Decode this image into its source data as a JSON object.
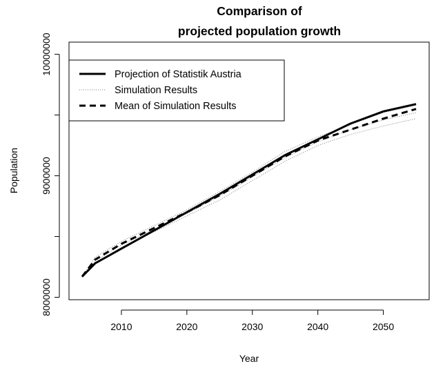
{
  "chart_data": {
    "type": "line",
    "title_lines": [
      "Comparison of",
      "projected population growth"
    ],
    "xlabel": "Year",
    "ylabel": "Population",
    "xlim": [
      2002,
      2057
    ],
    "ylim": [
      7980000,
      10100000
    ],
    "x_ticks": [
      2010,
      2020,
      2030,
      2040,
      2050
    ],
    "y_ticks": [
      8000000,
      8500000,
      9000000,
      9500000,
      10000000
    ],
    "y_tick_labels": [
      "8000000",
      "",
      "9000000",
      "",
      "10000000"
    ],
    "grid": false,
    "legend_position": "top-left",
    "series": [
      {
        "name": "Projection of Statistik Austria",
        "style": "solid",
        "x": [
          2004,
          2006,
          2008,
          2010,
          2015,
          2020,
          2025,
          2030,
          2035,
          2040,
          2045,
          2050,
          2055
        ],
        "y": [
          8170000,
          8280000,
          8340000,
          8400000,
          8550000,
          8700000,
          8850000,
          9010000,
          9170000,
          9300000,
          9430000,
          9530000,
          9590000
        ]
      },
      {
        "name": "Simulation Results",
        "style": "dotted",
        "x": [
          2004,
          2006,
          2010,
          2015,
          2020,
          2025,
          2030,
          2035,
          2040,
          2045,
          2050,
          2055
        ],
        "y": [
          8170000,
          8300000,
          8430000,
          8560000,
          8690000,
          8830000,
          8990000,
          9150000,
          9280000,
          9380000,
          9460000,
          9520000
        ]
      },
      {
        "name": "Mean of Simulation Results",
        "style": "dashed",
        "x": [
          2004,
          2006,
          2010,
          2015,
          2020,
          2025,
          2030,
          2035,
          2040,
          2045,
          2050,
          2055
        ],
        "y": [
          8170000,
          8310000,
          8440000,
          8570000,
          8700000,
          8840000,
          9000000,
          9160000,
          9290000,
          9380000,
          9470000,
          9550000
        ]
      }
    ],
    "simulation_envelope": {
      "x": [
        2004,
        2006,
        2010,
        2015,
        2020,
        2025,
        2030,
        2035,
        2040,
        2045,
        2050,
        2055
      ],
      "y_low": [
        8170000,
        8280000,
        8410000,
        8540000,
        8670000,
        8800000,
        8960000,
        9120000,
        9250000,
        9340000,
        9410000,
        9470000
      ],
      "y_high": [
        8170000,
        8330000,
        8460000,
        8590000,
        8720000,
        8870000,
        9030000,
        9200000,
        9320000,
        9420000,
        9520000,
        9580000
      ]
    }
  }
}
